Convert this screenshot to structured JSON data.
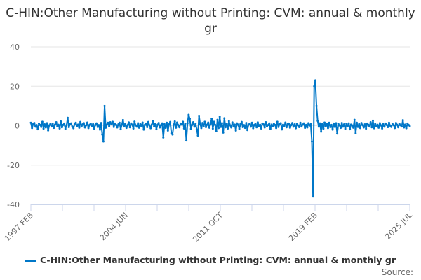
{
  "chart_data": {
    "type": "line",
    "title": "C-HIN:Other Manufacturing without Printing: CVM: annual & monthly gr",
    "xlabel": "",
    "ylabel": "",
    "x_start": "1997 FEB",
    "x_end": "2025 JUL",
    "x_frequency": "monthly",
    "x_tick_labels": [
      "1997 FEB",
      "2004 JUN",
      "2011 OCT",
      "2019 FEB",
      "2025 JUL"
    ],
    "y_ticks": [
      40,
      20,
      0,
      -20,
      -40
    ],
    "ylim": [
      -40,
      40
    ],
    "grid": true,
    "legend_position": "bottom",
    "series": [
      {
        "name": "C-HIN:Other Manufacturing without Printing: CVM: annual & monthly gr",
        "color": "#0077c8",
        "values": [
          1.5,
          -1.2,
          0.8,
          1.4,
          -0.5,
          0.3,
          -1.8,
          1.1,
          0.4,
          -0.6,
          2.0,
          -1.5,
          0.7,
          -0.9,
          1.3,
          -2.4,
          0.2,
          1.0,
          -0.4,
          0.9,
          -1.1,
          0.6,
          1.8,
          -0.3,
          0.5,
          -1.4,
          2.2,
          -0.8,
          0.4,
          1.1,
          -1.6,
          0.3,
          4.0,
          -0.7,
          0.9,
          1.2,
          -0.5,
          -1.3,
          0.8,
          1.5,
          -0.2,
          0.6,
          -1.0,
          1.9,
          -0.4,
          0.7,
          1.3,
          -0.9,
          0.2,
          1.6,
          -1.2,
          0.5,
          1.0,
          -0.3,
          0.8,
          -1.5,
          0.4,
          1.2,
          -0.6,
          0.3,
          -2.0,
          1.4,
          -4.5,
          -8.0,
          10.0,
          -1.0,
          0.6,
          1.5,
          -0.2,
          1.8,
          0.9,
          2.0,
          -0.6,
          1.1,
          0.4,
          -0.9,
          0.7,
          1.5,
          -1.8,
          0.5,
          2.9,
          -0.4,
          1.0,
          -1.1,
          0.3,
          1.7,
          -0.8,
          1.2,
          0.5,
          -1.4,
          2.1,
          0.2,
          -0.5,
          1.3,
          -1.0,
          0.8,
          -0.3,
          1.6,
          -2.0,
          0.4,
          1.1,
          -0.7,
          1.9,
          0.2,
          -1.3,
          0.6,
          2.3,
          -0.4,
          1.0,
          -1.8,
          0.5,
          1.4,
          -0.9,
          0.3,
          1.2,
          -6.0,
          0.8,
          -1.1,
          1.5,
          -2.5,
          0.7,
          1.9,
          -3.8,
          -4.5,
          0.4,
          2.2,
          -1.0,
          1.6,
          0.3,
          -0.8,
          1.1,
          0.6,
          2.0,
          -1.4,
          0.9,
          -7.5,
          1.2,
          5.5,
          3.5,
          -1.6,
          0.4,
          1.8,
          -0.5,
          1.0,
          -1.9,
          -5.0,
          5.0,
          0.8,
          -1.2,
          1.4,
          -0.3,
          2.0,
          -0.7,
          0.5,
          1.6,
          -1.0,
          0.9,
          3.5,
          -1.5,
          2.0,
          0.4,
          -2.8,
          3.0,
          -1.2,
          4.5,
          -0.6,
          1.3,
          -3.5,
          3.8,
          -0.8,
          1.0,
          -1.4,
          2.3,
          0.2,
          -0.9,
          1.7,
          -0.4,
          0.6,
          -2.5,
          1.2,
          0.5,
          -1.6,
          0.8,
          1.9,
          -0.7,
          0.3,
          -1.1,
          1.4,
          -2.2,
          0.6,
          1.0,
          -0.5,
          1.5,
          -1.3,
          0.4,
          0.9,
          -0.8,
          1.7,
          -0.2,
          0.5,
          -1.4,
          1.1,
          0.7,
          -0.9,
          1.8,
          -0.4,
          0.3,
          1.2,
          -1.6,
          0.6,
          -0.3,
          1.0,
          0.4,
          -1.2,
          2.0,
          -0.6,
          0.8,
          1.3,
          -1.9,
          0.5,
          -0.2,
          1.6,
          -0.8,
          0.9,
          1.1,
          -1.0,
          0.3,
          1.4,
          -0.5,
          0.7,
          -1.3,
          1.0,
          0.2,
          -0.7,
          1.5,
          -0.4,
          0.6,
          1.2,
          -1.1,
          0.4,
          -0.9,
          1.3,
          0.1,
          0.8,
          -8.0,
          -36.0,
          20.0,
          23.0,
          10.0,
          2.5,
          -0.5,
          1.2,
          -3.0,
          0.8,
          -1.5,
          1.6,
          -0.4,
          0.9,
          -1.2,
          1.5,
          -0.7,
          0.4,
          -2.0,
          1.1,
          -0.6,
          1.3,
          -4.0,
          0.9,
          0.2,
          -1.1,
          1.4,
          -0.5,
          0.7,
          -1.6,
          1.0,
          -0.3,
          1.2,
          -1.8,
          0.6,
          0.2,
          -1.0,
          3.0,
          -3.8,
          1.5,
          -0.6,
          0.8,
          -1.2,
          1.4,
          0.3,
          -0.9,
          0.7,
          -1.5,
          1.1,
          0.5,
          -0.4,
          1.8,
          -0.8,
          2.6,
          -1.3,
          0.9,
          -0.2,
          0.5,
          -1.0,
          1.3,
          0.2,
          -1.4,
          0.8,
          -0.5,
          1.1,
          0.4,
          -0.7,
          1.5,
          0.0,
          -0.6,
          0.9,
          0.3,
          -1.2,
          1.4,
          0.5,
          -0.8,
          1.0,
          0.2,
          -0.4,
          2.8,
          -0.9,
          0.6,
          -1.3,
          1.1,
          0.4,
          -0.2
        ]
      }
    ]
  },
  "source_label": "Source:"
}
